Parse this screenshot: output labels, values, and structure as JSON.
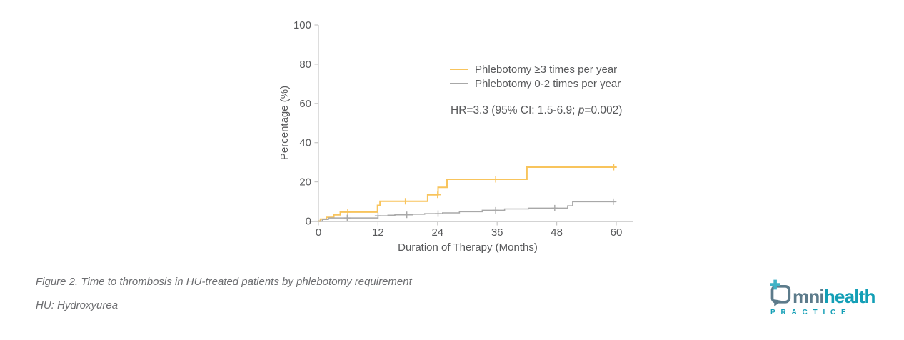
{
  "figure": {
    "caption": "Figure 2. Time to thrombosis in HU-treated patients by phlebotomy requirement",
    "abbreviation_note": "HU: Hydroxyurea"
  },
  "annotation": {
    "prefix": "HR=3.3 (95% CI: 1.5-6.9; ",
    "p": "p",
    "suffix": "=0.002)"
  },
  "logo": {
    "part1": "mni",
    "part2": "health",
    "subtext": "PRACTICE",
    "slate_color": "#5C7B8B",
    "teal_color": "#139FB6",
    "plus_color": "#3FB3C6"
  },
  "colors": {
    "text": "#58595B",
    "axis": "#C6C6C6",
    "baseline": "#D3D3D3"
  },
  "chart_data": {
    "type": "line",
    "variant": "kaplan-meier cumulative incidence step curves with censor tick marks",
    "title": "",
    "xlabel": "Duration of Therapy (Months)",
    "ylabel": "Percentage (%)",
    "xlim": [
      0,
      60
    ],
    "ylim": [
      0,
      100
    ],
    "xticks": [
      0,
      12,
      24,
      36,
      48,
      60
    ],
    "yticks": [
      0,
      20,
      40,
      60,
      80,
      100
    ],
    "grid": false,
    "legend_position": "inside upper-right",
    "annotation": "HR=3.3 (95% CI: 1.5-6.9; p=0.002)",
    "series": [
      {
        "name": "Phlebotomy ≥3 times per year",
        "color": "#F8C45C",
        "width": 2,
        "points": [
          [
            0,
            0
          ],
          [
            0.4,
            1.0
          ],
          [
            1.6,
            1.9
          ],
          [
            3.1,
            3.2
          ],
          [
            4.4,
            4.6
          ],
          [
            11.9,
            8.0
          ],
          [
            12.4,
            10.1
          ],
          [
            22.0,
            13.4
          ],
          [
            24.1,
            17.2
          ],
          [
            25.9,
            21.3
          ],
          [
            42.0,
            27.5
          ],
          [
            60,
            27.5
          ]
        ],
        "censor_marks": [
          [
            5.9,
            4.6
          ],
          [
            17.5,
            10.1
          ],
          [
            24.0,
            13.4
          ],
          [
            35.7,
            21.3
          ],
          [
            59.5,
            27.5
          ]
        ]
      },
      {
        "name": "Phlebotomy 0-2 times per year",
        "color": "#A8A8A8",
        "width": 1.5,
        "points": [
          [
            0,
            0
          ],
          [
            0.8,
            0.8
          ],
          [
            2.0,
            1.6
          ],
          [
            12.0,
            2.7
          ],
          [
            14.0,
            3.0
          ],
          [
            15.4,
            3.2
          ],
          [
            19.0,
            3.5
          ],
          [
            21.4,
            3.8
          ],
          [
            25.0,
            4.2
          ],
          [
            28.4,
            4.8
          ],
          [
            33.0,
            5.5
          ],
          [
            37.5,
            6.2
          ],
          [
            42.3,
            6.6
          ],
          [
            50.2,
            7.8
          ],
          [
            51.2,
            9.9
          ],
          [
            60,
            9.9
          ]
        ],
        "censor_marks": [
          [
            5.8,
            1.6
          ],
          [
            12.0,
            2.7
          ],
          [
            17.8,
            3.2
          ],
          [
            24.1,
            3.8
          ],
          [
            35.7,
            5.5
          ],
          [
            47.6,
            6.6
          ],
          [
            59.4,
            9.9
          ]
        ]
      }
    ]
  }
}
